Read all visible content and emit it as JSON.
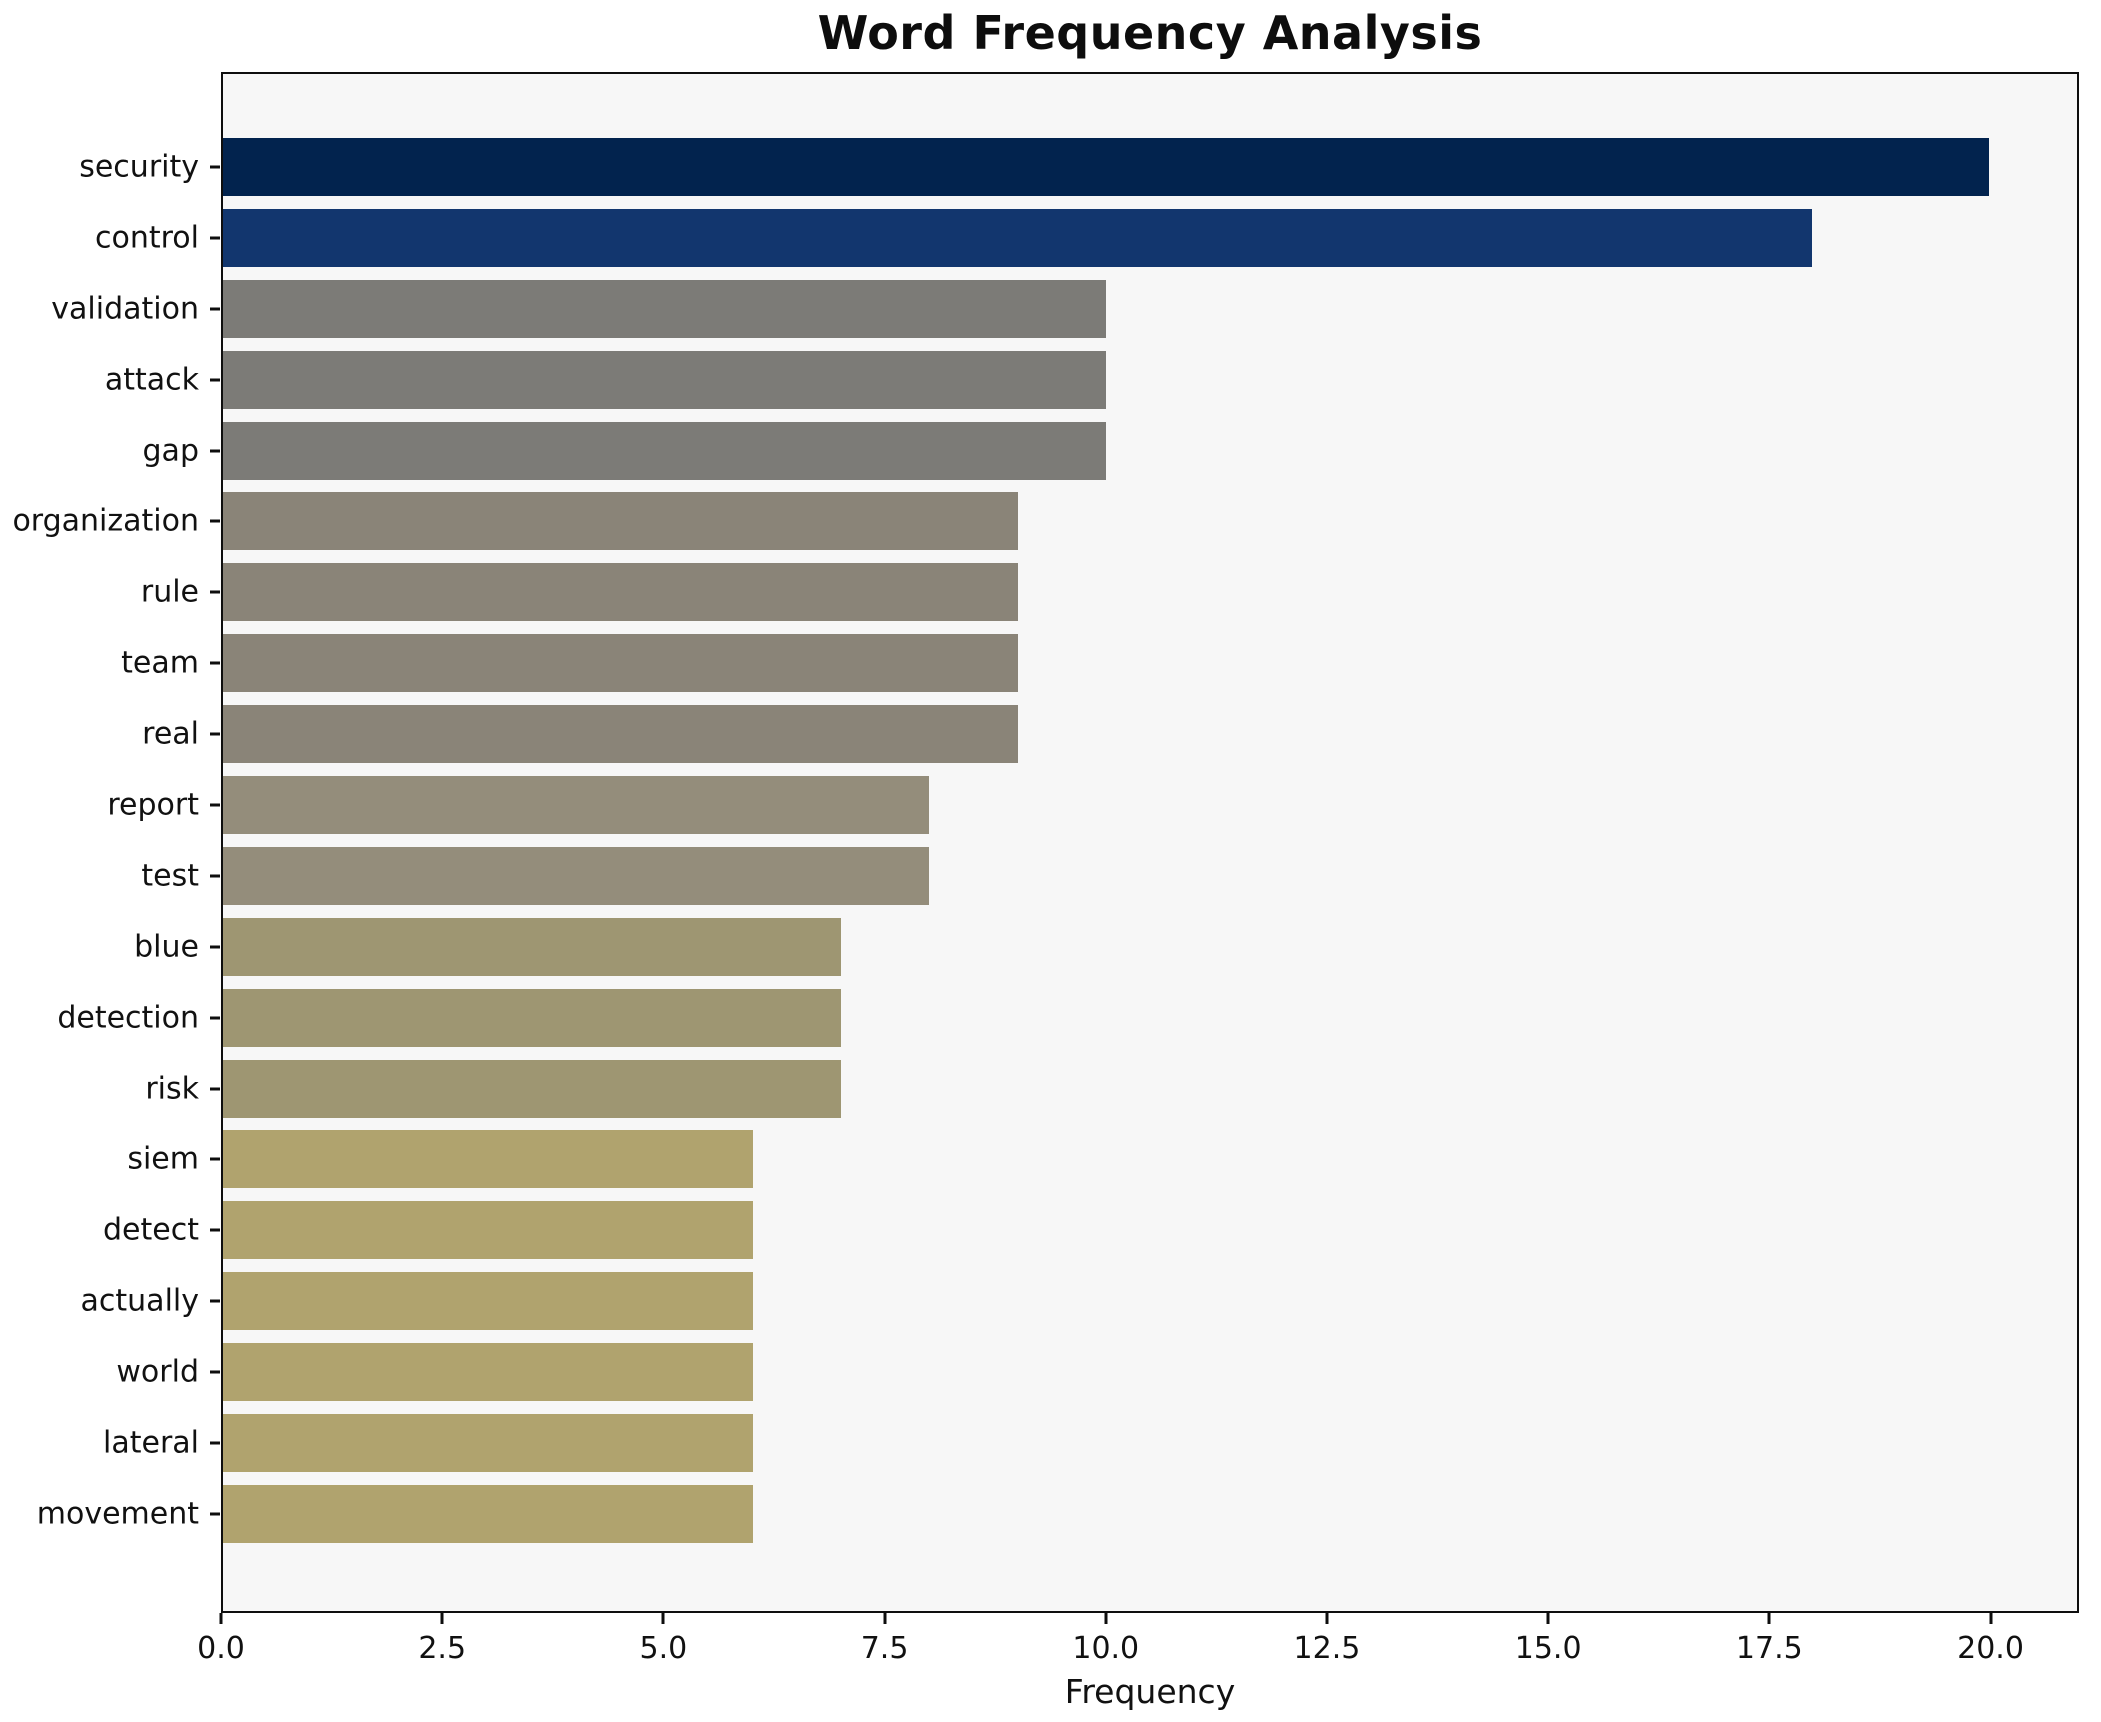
{
  "chart_data": {
    "type": "bar",
    "orientation": "horizontal",
    "title": "Word Frequency Analysis",
    "xlabel": "Frequency",
    "ylabel": "",
    "categories": [
      "security",
      "control",
      "validation",
      "attack",
      "gap",
      "organization",
      "rule",
      "team",
      "real",
      "report",
      "test",
      "blue",
      "detection",
      "risk",
      "siem",
      "detect",
      "actually",
      "world",
      "lateral",
      "movement"
    ],
    "values": [
      20,
      18,
      10,
      10,
      10,
      9,
      9,
      9,
      9,
      8,
      8,
      7,
      7,
      7,
      6,
      6,
      6,
      6,
      6,
      6
    ],
    "bar_colors": [
      "#02234e",
      "#12366e",
      "#7c7b77",
      "#7c7b77",
      "#7c7b77",
      "#8a8478",
      "#8a8478",
      "#8a8478",
      "#8a8478",
      "#948d7b",
      "#948d7b",
      "#9e9672",
      "#9e9672",
      "#9e9672",
      "#b0a36e",
      "#b0a36e",
      "#b0a36e",
      "#b0a36e",
      "#b0a36e",
      "#b0a36e"
    ],
    "xlim": [
      0,
      21
    ],
    "xticks": [
      0.0,
      2.5,
      5.0,
      7.5,
      10.0,
      12.5,
      15.0,
      17.5,
      20.0
    ],
    "xtick_labels": [
      "0.0",
      "2.5",
      "5.0",
      "7.5",
      "10.0",
      "12.5",
      "15.0",
      "17.5",
      "20.0"
    ],
    "grid": false,
    "legend": "none",
    "plot_background": "#f7f7f7",
    "figure_background": "#ffffff",
    "spine_color": "#0e0e0e"
  }
}
